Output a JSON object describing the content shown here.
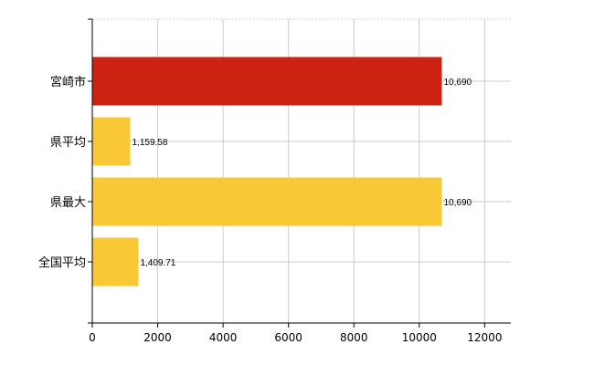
{
  "chart_data": {
    "type": "bar",
    "orientation": "horizontal",
    "categories": [
      "宮崎市",
      "県平均",
      "県最大",
      "全国平均"
    ],
    "values": [
      10690,
      1159.58,
      10690,
      1409.71
    ],
    "value_labels": [
      "10,690",
      "1,159.58",
      "10,690",
      "1,409.71"
    ],
    "bar_colors": [
      "#cc2211",
      "#f8c837",
      "#f8c837",
      "#f8c837"
    ],
    "x_ticks": [
      0,
      2000,
      4000,
      6000,
      8000,
      10000,
      12000
    ],
    "xlim": [
      0,
      12800
    ],
    "grid": true,
    "legend": "none",
    "title": "",
    "xlabel": "",
    "ylabel": ""
  }
}
